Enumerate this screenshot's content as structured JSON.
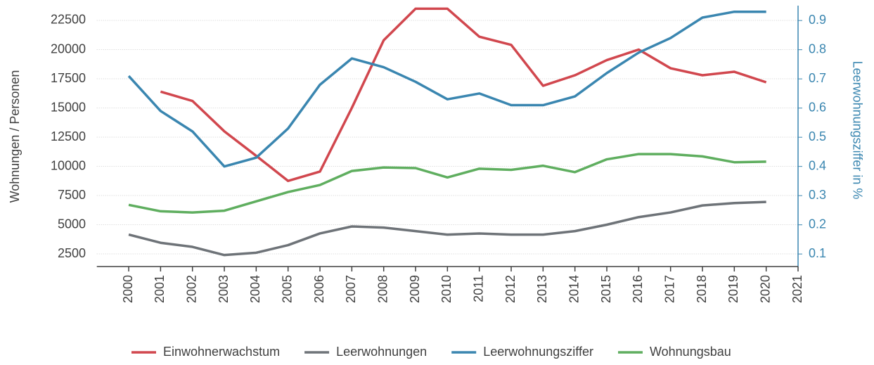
{
  "chart_data": {
    "type": "line",
    "x": [
      2000,
      2001,
      2002,
      2003,
      2004,
      2005,
      2006,
      2007,
      2008,
      2009,
      2010,
      2011,
      2012,
      2013,
      2014,
      2015,
      2016,
      2017,
      2018,
      2019,
      2020
    ],
    "xlim": [
      1999,
      2021
    ],
    "xticks": [
      2000,
      2001,
      2002,
      2003,
      2004,
      2005,
      2006,
      2007,
      2008,
      2009,
      2010,
      2011,
      2012,
      2013,
      2014,
      2015,
      2016,
      2017,
      2018,
      2019,
      2020,
      2021
    ],
    "ylabel": "Wohnungen / Personen",
    "y2label": "Leerwohnungsziffer in %",
    "ylim": [
      1416,
      23765
    ],
    "yticks": [
      2500,
      5000,
      7500,
      10000,
      12500,
      15000,
      17500,
      20000,
      22500
    ],
    "y2lim": [
      0.057,
      0.951
    ],
    "y2ticks": [
      0.1,
      0.2,
      0.3,
      0.4,
      0.5,
      0.6,
      0.7,
      0.8,
      0.9
    ],
    "y2color": "#3a86b0",
    "grid": true,
    "legend": "bottom",
    "series": [
      {
        "name": "Einwohnerwachstum",
        "color": "#d1474e",
        "values": [
          null,
          16400,
          15600,
          13000,
          10900,
          8750,
          9550,
          15000,
          20800,
          23500,
          23500,
          21100,
          20400,
          16900,
          17800,
          19100,
          20000,
          18400,
          17800,
          18100,
          17200
        ]
      },
      {
        "name": "Leerwohnungen",
        "color": "#6e7378",
        "values": [
          4150,
          3450,
          3100,
          2400,
          2600,
          3250,
          4250,
          4850,
          4750,
          4450,
          4150,
          4250,
          4150,
          4150,
          4450,
          5000,
          5650,
          6050,
          6650,
          6850,
          6950
        ]
      },
      {
        "name": "Leerwohnungsziffer",
        "color": "#3a86b0",
        "axis": "y2",
        "values": [
          0.71,
          0.59,
          0.52,
          0.4,
          0.43,
          0.53,
          0.68,
          0.77,
          0.74,
          0.69,
          0.63,
          0.65,
          0.61,
          0.61,
          0.64,
          0.72,
          0.79,
          0.84,
          0.91,
          0.93,
          0.93
        ]
      },
      {
        "name": "Wohnungsbau",
        "color": "#5fae5f",
        "values": [
          6700,
          6150,
          6050,
          6200,
          7000,
          7800,
          8400,
          9600,
          9900,
          9850,
          9050,
          9800,
          9700,
          10050,
          9500,
          10600,
          11050,
          11050,
          10850,
          10350,
          10400
        ]
      }
    ]
  }
}
